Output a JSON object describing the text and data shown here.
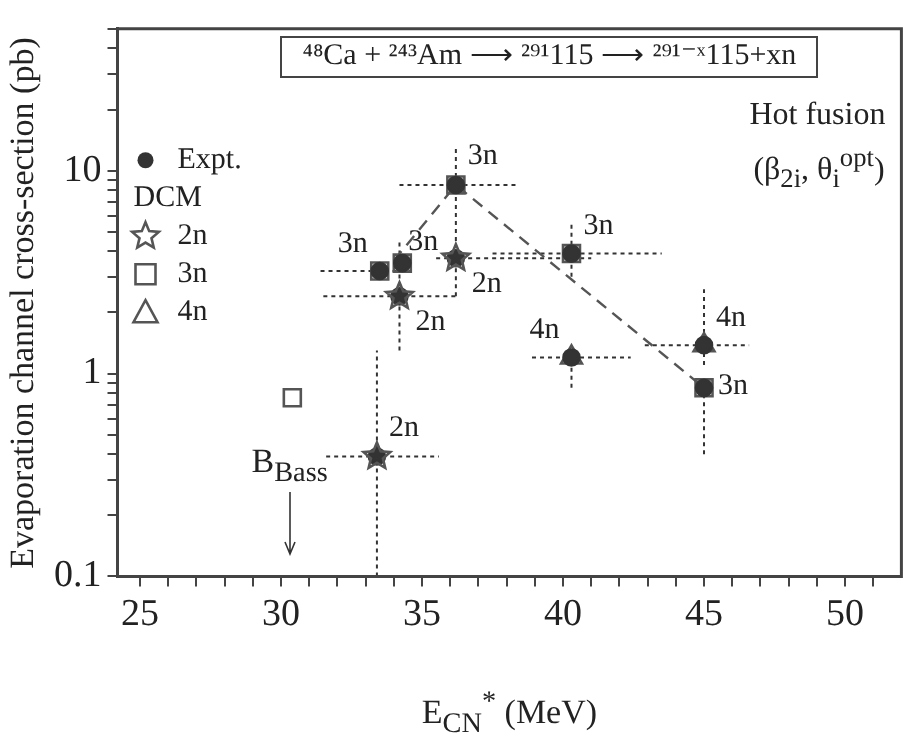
{
  "chart_data": {
    "type": "scatter",
    "title": "⁴⁸Ca + ²⁴³Am ⟶ ²⁹¹115 ⟶ ²⁹¹⁻ˣ115+xn",
    "xlabel": "E$_{CN}$$^{*}$ (MeV)",
    "ylabel": "Evaporation channel cross-section (pb)",
    "annotations": [
      "Hot fusion",
      "(β$_{2i}$, θ$_{i}$$^{opt}$)",
      {
        "text": "3n",
        "x": 33.5,
        "y": 3.2
      },
      {
        "text": "3n",
        "x": 34.3,
        "y": 3.5
      },
      {
        "text": "2n",
        "x": 36.2,
        "y": 3.7
      },
      {
        "text": "2n",
        "x": 34.2,
        "y": 2.4
      },
      {
        "text": "3n",
        "x": 36.2,
        "y": 8.5
      },
      {
        "text": "3n",
        "x": 40.3,
        "y": 3.9
      },
      {
        "text": "4n",
        "x": 40.3,
        "y": 1.2
      },
      {
        "text": "2n",
        "x": 33.4,
        "y": 0.39
      },
      {
        "text": "4n",
        "x": 45,
        "y": 1.38
      },
      {
        "text": "3n",
        "x": 45,
        "y": 0.85
      }
    ],
    "ref_lines": [
      {
        "axis": "x",
        "value": 30.3,
        "label": "B$_{Bass}$"
      }
    ],
    "xlim": [
      24.2,
      52
    ],
    "xticks": [
      25,
      {
        "value": 26,
        "label": null
      },
      {
        "value": 27,
        "label": null
      },
      {
        "value": 28,
        "label": null
      },
      {
        "value": 29,
        "label": null
      },
      30,
      {
        "value": 31,
        "label": null
      },
      {
        "value": 32,
        "label": null
      },
      {
        "value": 33,
        "label": null
      },
      {
        "value": 34,
        "label": null
      },
      35,
      {
        "value": 36,
        "label": null
      },
      {
        "value": 37,
        "label": null
      },
      {
        "value": 38,
        "label": null
      },
      {
        "value": 39,
        "label": null
      },
      40,
      {
        "value": 41,
        "label": null
      },
      {
        "value": 42,
        "label": null
      },
      {
        "value": 43,
        "label": null
      },
      {
        "value": 44,
        "label": null
      },
      45,
      {
        "value": 46,
        "label": null
      },
      {
        "value": 47,
        "label": null
      },
      {
        "value": 48,
        "label": null
      },
      {
        "value": 49,
        "label": null
      },
      50,
      {
        "value": 51,
        "label": null
      }
    ],
    "ylim": [
      0.1,
      50
    ],
    "yticks": [
      0.1,
      {
        "value": 0.2,
        "label": null
      },
      {
        "value": 0.3,
        "label": null
      },
      {
        "value": 0.4,
        "label": null
      },
      {
        "value": 0.5,
        "label": null
      },
      {
        "value": 0.6,
        "label": null
      },
      {
        "value": 0.7,
        "label": null
      },
      {
        "value": 0.8,
        "label": null
      },
      {
        "value": 0.9,
        "label": null
      },
      1,
      {
        "value": 2,
        "label": null
      },
      {
        "value": 3,
        "label": null
      },
      {
        "value": 4,
        "label": null
      },
      {
        "value": 5,
        "label": null
      },
      {
        "value": 6,
        "label": null
      },
      {
        "value": 7,
        "label": null
      },
      {
        "value": 8,
        "label": null
      },
      {
        "value": 9,
        "label": null
      },
      10,
      {
        "value": 20,
        "label": null
      },
      {
        "value": 30,
        "label": null
      },
      {
        "value": 40,
        "label": null
      },
      {
        "value": 50,
        "label": null
      }
    ],
    "log": "y",
    "grid": false,
    "legend": "left",
    "legend_title": "DCM",
    "series": [
      {
        "name": "Expt.",
        "color": "#333333",
        "marker": "circle",
        "x": [
          33.4,
          33.5,
          34.2,
          34.3,
          36.2,
          36.2,
          40.3,
          40.3,
          45,
          45
        ],
        "values": [
          0.39,
          3.2,
          2.4,
          3.5,
          8.5,
          3.7,
          3.9,
          1.2,
          1.38,
          0.85
        ],
        "xerrors": [
          [
            31.6,
            35.6
          ],
          [
            31.4,
            34.6
          ],
          [
            31.5,
            36.2
          ],
          null,
          [
            34.2,
            38.4
          ],
          [
            35.5,
            41
          ],
          [
            37.5,
            43.5
          ],
          [
            38.9,
            42.4
          ],
          [
            42.9,
            46.6
          ],
          null
        ],
        "errors": [
          [
            0.1,
            1.3
          ],
          null,
          [
            1.3,
            4.5
          ],
          null,
          [
            4.5,
            13
          ],
          [
            2.4,
            3.7
          ],
          [
            3,
            5.6
          ],
          [
            0.85,
            1.2
          ],
          [
            1.1,
            2.6
          ],
          [
            0.4,
            0.85
          ]
        ]
      },
      {
        "name": "2n",
        "color": "#555555",
        "marker": "star",
        "x": [
          33.4,
          34.2,
          36.2
        ],
        "values": [
          0.39,
          2.4,
          3.7
        ]
      },
      {
        "name": "3n",
        "color": "#555555",
        "marker": "square",
        "x": [
          30.4,
          33.5,
          34.3,
          36.2,
          40.3,
          45
        ],
        "values": [
          0.76,
          3.2,
          3.5,
          8.5,
          3.9,
          0.85
        ]
      },
      {
        "name": "4n",
        "color": "#555555",
        "marker": "triangle",
        "x": [
          40.3,
          45
        ],
        "values": [
          1.2,
          1.38
        ]
      },
      {
        "type": "line",
        "color": "#555555",
        "marker": "none",
        "line_style": "dashed",
        "x": [
          34.0,
          36.2,
          45
        ],
        "values": [
          3.6,
          8.5,
          0.85
        ]
      }
    ]
  }
}
